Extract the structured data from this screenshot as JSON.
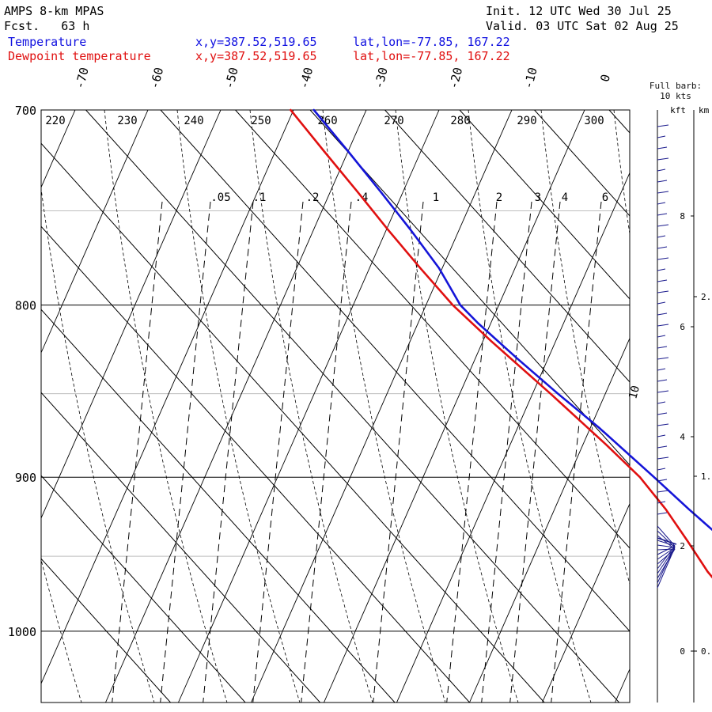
{
  "header": {
    "model": "AMPS 8-km MPAS",
    "fcst": "Fcst.   63 h",
    "init": "Init. 12 UTC Wed 30 Jul 25",
    "valid": "Valid. 03 UTC Sat 02 Aug 25",
    "temp_label": "Temperature",
    "dew_label": "Dewpoint temperature",
    "temp_xy": "x,y=387.52,519.65",
    "temp_latlon": "lat,lon=-77.85, 167.22",
    "dew_xy": "x,y=387.52,519.65",
    "dew_latlon": "lat,lon=-77.85, 167.22"
  },
  "colors": {
    "temperature": "#1515d8",
    "dewpoint": "#e01010",
    "barbs": "#1a1a8c"
  },
  "chart_data": {
    "type": "line",
    "plot": "skew-t log-p",
    "y_ticks_hpa": [
      700,
      800,
      900,
      1000
    ],
    "ylim_hpa": [
      700,
      1050
    ],
    "temp_ticks_c": [
      -70,
      -60,
      -50,
      -40,
      -30,
      -20,
      -10,
      0
    ],
    "temp_ticks_label": [
      "-70",
      "-60",
      "-50",
      "-40",
      "-30",
      "-20",
      "-10",
      "0"
    ],
    "theta_labels": [
      "220",
      "230",
      "240",
      "250",
      "260",
      "270",
      "280",
      "290",
      "300"
    ],
    "mixing_ratio_labels": [
      ".05",
      ".1",
      ".2",
      ".4",
      "1",
      "2",
      "3",
      "4",
      "6"
    ],
    "isotherm_label": "10",
    "series": [
      {
        "name": "Temperature",
        "points": [
          [
            700,
            -39.5
          ],
          [
            720,
            -39.9
          ],
          [
            740,
            -40.4
          ],
          [
            760,
            -41.0
          ],
          [
            780,
            -41.8
          ],
          [
            790,
            -42.6
          ],
          [
            800,
            -43.4
          ],
          [
            810,
            -43.2
          ],
          [
            830,
            -42.2
          ],
          [
            850,
            -41.0
          ],
          [
            870,
            -39.6
          ],
          [
            900,
            -38.2
          ],
          [
            920,
            -37.4
          ],
          [
            940,
            -36.4
          ],
          [
            960,
            -35.4
          ],
          [
            975,
            -34.6
          ]
        ]
      },
      {
        "name": "Dewpoint temperature",
        "points": [
          [
            700,
            -42.6
          ],
          [
            720,
            -43.1
          ],
          [
            740,
            -43.5
          ],
          [
            760,
            -44.0
          ],
          [
            780,
            -44.3
          ],
          [
            800,
            -44.4
          ],
          [
            820,
            -43.6
          ],
          [
            850,
            -42.0
          ],
          [
            880,
            -40.7
          ],
          [
            900,
            -40.1
          ],
          [
            920,
            -40.5
          ],
          [
            940,
            -41.4
          ],
          [
            960,
            -42.4
          ],
          [
            975,
            -42.6
          ]
        ]
      }
    ],
    "barbs": {
      "title": "Full barb: 10 kts",
      "kft_label": "kft",
      "km_label": "km",
      "kft_ticks": [
        "0",
        "2",
        "4",
        "6",
        "8"
      ],
      "km_ticks": [
        "0.",
        "1.",
        "2."
      ]
    }
  }
}
